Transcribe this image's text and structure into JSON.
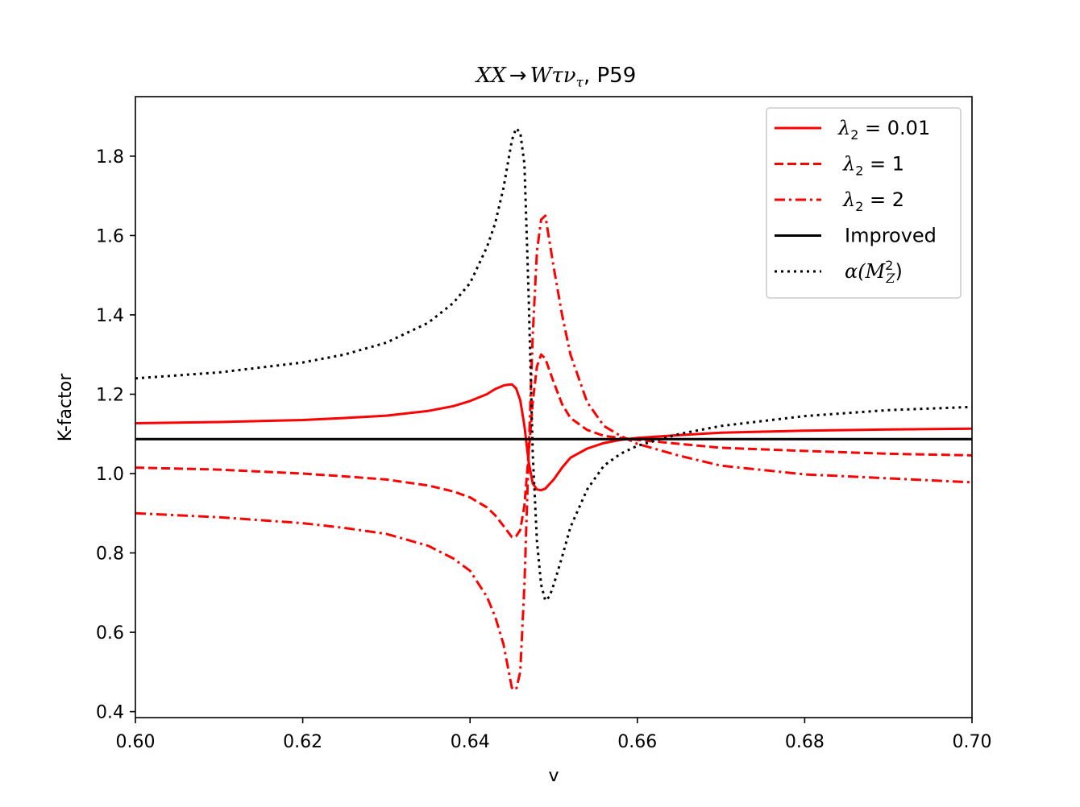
{
  "chart_data": {
    "type": "line",
    "title": "XX → Wτν_τ, P59",
    "title_parts": {
      "lhs": "XX",
      "arrow": "→",
      "w": "W",
      "tau": "τν",
      "sub": "τ",
      "proc": ", P59"
    },
    "xlabel": "v",
    "ylabel": "K-factor",
    "xlim": [
      0.6,
      0.7
    ],
    "ylim": [
      0.385,
      1.95
    ],
    "xticks": [
      0.6,
      0.62,
      0.64,
      0.66,
      0.68,
      0.7
    ],
    "xtick_labels": [
      "0.60",
      "0.62",
      "0.64",
      "0.66",
      "0.68",
      "0.70"
    ],
    "yticks": [
      0.4,
      0.6,
      0.8,
      1.0,
      1.2,
      1.4,
      1.6,
      1.8
    ],
    "ytick_labels": [
      "0.4",
      "0.6",
      "0.8",
      "1.0",
      "1.2",
      "1.4",
      "1.6",
      "1.8"
    ],
    "grid": false,
    "legend_position": "top-right",
    "series": [
      {
        "name": "λ2 = 0.01",
        "legend": {
          "sym": "λ",
          "sub": "2",
          "eq": " = 0.01"
        },
        "color": "#ff0000",
        "style": "solid",
        "x": [
          0.6,
          0.61,
          0.62,
          0.625,
          0.63,
          0.635,
          0.638,
          0.64,
          0.642,
          0.643,
          0.644,
          0.6445,
          0.645,
          0.6455,
          0.646,
          0.6465,
          0.647,
          0.6475,
          0.648,
          0.6485,
          0.649,
          0.65,
          0.651,
          0.652,
          0.654,
          0.656,
          0.658,
          0.66,
          0.665,
          0.67,
          0.68,
          0.69,
          0.7
        ],
        "y": [
          1.127,
          1.13,
          1.135,
          1.14,
          1.146,
          1.158,
          1.17,
          1.183,
          1.2,
          1.213,
          1.222,
          1.224,
          1.225,
          1.215,
          1.185,
          1.12,
          1.03,
          0.975,
          0.96,
          0.958,
          0.962,
          0.985,
          1.015,
          1.04,
          1.063,
          1.077,
          1.085,
          1.09,
          1.097,
          1.103,
          1.108,
          1.111,
          1.113
        ]
      },
      {
        "name": "λ2 = 1",
        "legend": {
          "sym": "λ",
          "sub": "2",
          "eq": " = 1"
        },
        "color": "#ff0000",
        "style": "dashed",
        "x": [
          0.6,
          0.61,
          0.62,
          0.625,
          0.63,
          0.635,
          0.638,
          0.64,
          0.642,
          0.643,
          0.644,
          0.645,
          0.6455,
          0.646,
          0.6465,
          0.647,
          0.6475,
          0.648,
          0.6485,
          0.649,
          0.65,
          0.651,
          0.652,
          0.654,
          0.656,
          0.658,
          0.66,
          0.665,
          0.67,
          0.68,
          0.69,
          0.7
        ],
        "y": [
          1.015,
          1.01,
          1.0,
          0.993,
          0.985,
          0.97,
          0.955,
          0.94,
          0.915,
          0.895,
          0.868,
          0.84,
          0.842,
          0.858,
          0.92,
          1.05,
          1.18,
          1.27,
          1.3,
          1.29,
          1.23,
          1.175,
          1.14,
          1.11,
          1.095,
          1.09,
          1.085,
          1.075,
          1.065,
          1.057,
          1.05,
          1.046
        ]
      },
      {
        "name": "λ2 = 2",
        "legend": {
          "sym": "λ",
          "sub": "2",
          "eq": " = 2"
        },
        "color": "#ff0000",
        "style": "dashdot",
        "x": [
          0.6,
          0.61,
          0.62,
          0.625,
          0.63,
          0.635,
          0.638,
          0.64,
          0.642,
          0.643,
          0.644,
          0.645,
          0.6455,
          0.646,
          0.6465,
          0.647,
          0.6475,
          0.648,
          0.6485,
          0.649,
          0.65,
          0.651,
          0.652,
          0.654,
          0.656,
          0.658,
          0.66,
          0.665,
          0.67,
          0.68,
          0.69,
          0.7
        ],
        "y": [
          0.9,
          0.89,
          0.875,
          0.863,
          0.848,
          0.818,
          0.786,
          0.755,
          0.69,
          0.64,
          0.57,
          0.46,
          0.455,
          0.5,
          0.72,
          1.05,
          1.35,
          1.56,
          1.64,
          1.65,
          1.52,
          1.4,
          1.3,
          1.18,
          1.12,
          1.095,
          1.075,
          1.045,
          1.02,
          0.998,
          0.988,
          0.978
        ]
      },
      {
        "name": "Improved",
        "legend": {
          "sym": "",
          "sub": "",
          "eq": "Improved"
        },
        "color": "#000000",
        "style": "solid",
        "x": [
          0.6,
          0.7
        ],
        "y": [
          1.087,
          1.087
        ]
      },
      {
        "name": "α(M_Z^2)",
        "legend": {
          "sym": "α(M",
          "sub": "Z",
          "sup": "2",
          "eq": ")"
        },
        "color": "#000000",
        "style": "dotted",
        "x": [
          0.6,
          0.61,
          0.62,
          0.625,
          0.63,
          0.635,
          0.638,
          0.64,
          0.642,
          0.643,
          0.644,
          0.6445,
          0.645,
          0.6455,
          0.646,
          0.6465,
          0.647,
          0.6475,
          0.648,
          0.6485,
          0.649,
          0.6495,
          0.65,
          0.651,
          0.652,
          0.654,
          0.656,
          0.658,
          0.66,
          0.665,
          0.67,
          0.68,
          0.69,
          0.7
        ],
        "y": [
          1.24,
          1.255,
          1.28,
          1.3,
          1.33,
          1.38,
          1.43,
          1.48,
          1.57,
          1.63,
          1.72,
          1.78,
          1.84,
          1.87,
          1.86,
          1.78,
          1.45,
          1.05,
          0.83,
          0.72,
          0.68,
          0.69,
          0.72,
          0.79,
          0.865,
          0.96,
          1.02,
          1.05,
          1.07,
          1.1,
          1.12,
          1.145,
          1.16,
          1.168
        ]
      }
    ]
  }
}
